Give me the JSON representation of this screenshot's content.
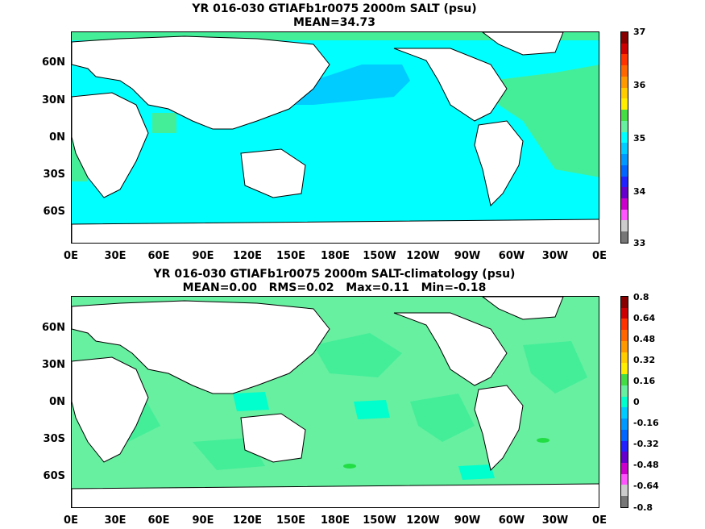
{
  "top": {
    "title": "YR 016-030 GTIAFb1r0075 2000m SALT (psu)",
    "subtitle": "MEAN=34.73",
    "colorbar_labels": [
      "37",
      "36",
      "35",
      "34",
      "33"
    ],
    "colors": [
      "#880000",
      "#cc0000",
      "#ff3300",
      "#ff6600",
      "#ff9900",
      "#ffcc00",
      "#ffee00",
      "#44dd44",
      "#66f0a0",
      "#00ffff",
      "#00ccff",
      "#0099ff",
      "#0066ff",
      "#2222ff",
      "#6600cc",
      "#cc00cc",
      "#ff55ff",
      "#cccccc",
      "#777777"
    ]
  },
  "bottom": {
    "title": "YR 016-030 GTIAFb1r0075 2000m SALT-climatology (psu)",
    "subtitle": "MEAN=0.00   RMS=0.02   Max=0.11   Min=-0.18",
    "colorbar_labels": [
      "0.8",
      "0.64",
      "0.48",
      "0.32",
      "0.16",
      "0",
      "-0.16",
      "-0.32",
      "-0.48",
      "-0.64",
      "-0.8"
    ],
    "colors": [
      "#880000",
      "#cc0000",
      "#ff3300",
      "#ff6600",
      "#ff9900",
      "#ffcc00",
      "#ffee00",
      "#44dd44",
      "#66f0a0",
      "#00ffcc",
      "#00ccff",
      "#0099ff",
      "#0066ff",
      "#2222ff",
      "#6600cc",
      "#cc00cc",
      "#ff55ff",
      "#cccccc",
      "#777777"
    ]
  },
  "y_axis_labels": [
    "60N",
    "30N",
    "0N",
    "30S",
    "60S"
  ],
  "x_axis_labels": [
    "0E",
    "30E",
    "60E",
    "90E",
    "120E",
    "150E",
    "180E",
    "150W",
    "120W",
    "90W",
    "60W",
    "30W",
    "0E"
  ],
  "ocean_colors": {
    "top_base": "#00ffff",
    "top_pacific_north": "#00ccff",
    "top_atlantic": "#44ee99",
    "bottom_base": "#66f0a0",
    "bottom_anomaly_light": "#44ee99",
    "bottom_anomaly_dark": "#22dd44",
    "bottom_anomaly_cyan": "#00ffcc"
  }
}
